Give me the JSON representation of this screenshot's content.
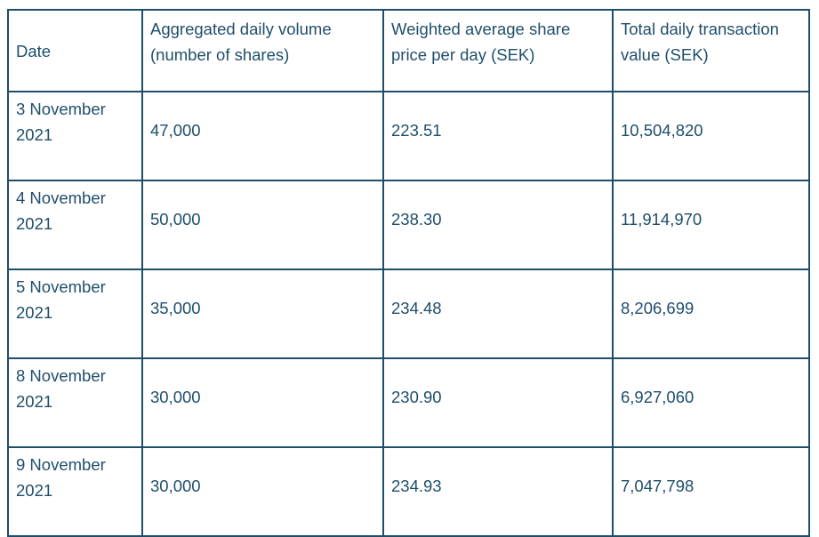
{
  "table": {
    "headers": [
      "Date",
      "Aggregated daily volume (number of shares)",
      "Weighted average share price per day (SEK)",
      "Total daily transaction value (SEK)"
    ],
    "rows": [
      {
        "date": "3 November 2021",
        "volume": "47,000",
        "price": "223.51",
        "value": "10,504,820"
      },
      {
        "date": "4 November 2021",
        "volume": "50,000",
        "price": "238.30",
        "value": "11,914,970"
      },
      {
        "date": "5 November 2021",
        "volume": "35,000",
        "price": "234.48",
        "value": "8,206,699"
      },
      {
        "date": "8 November 2021",
        "volume": "30,000",
        "price": "230.90",
        "value": "6,927,060"
      },
      {
        "date": "9 November 2021",
        "volume": "30,000",
        "price": "234.93",
        "value": "7,047,798"
      }
    ]
  },
  "colors": {
    "text": "#1f4e6b",
    "border": "#1f4e6b",
    "background": "#ffffff"
  }
}
